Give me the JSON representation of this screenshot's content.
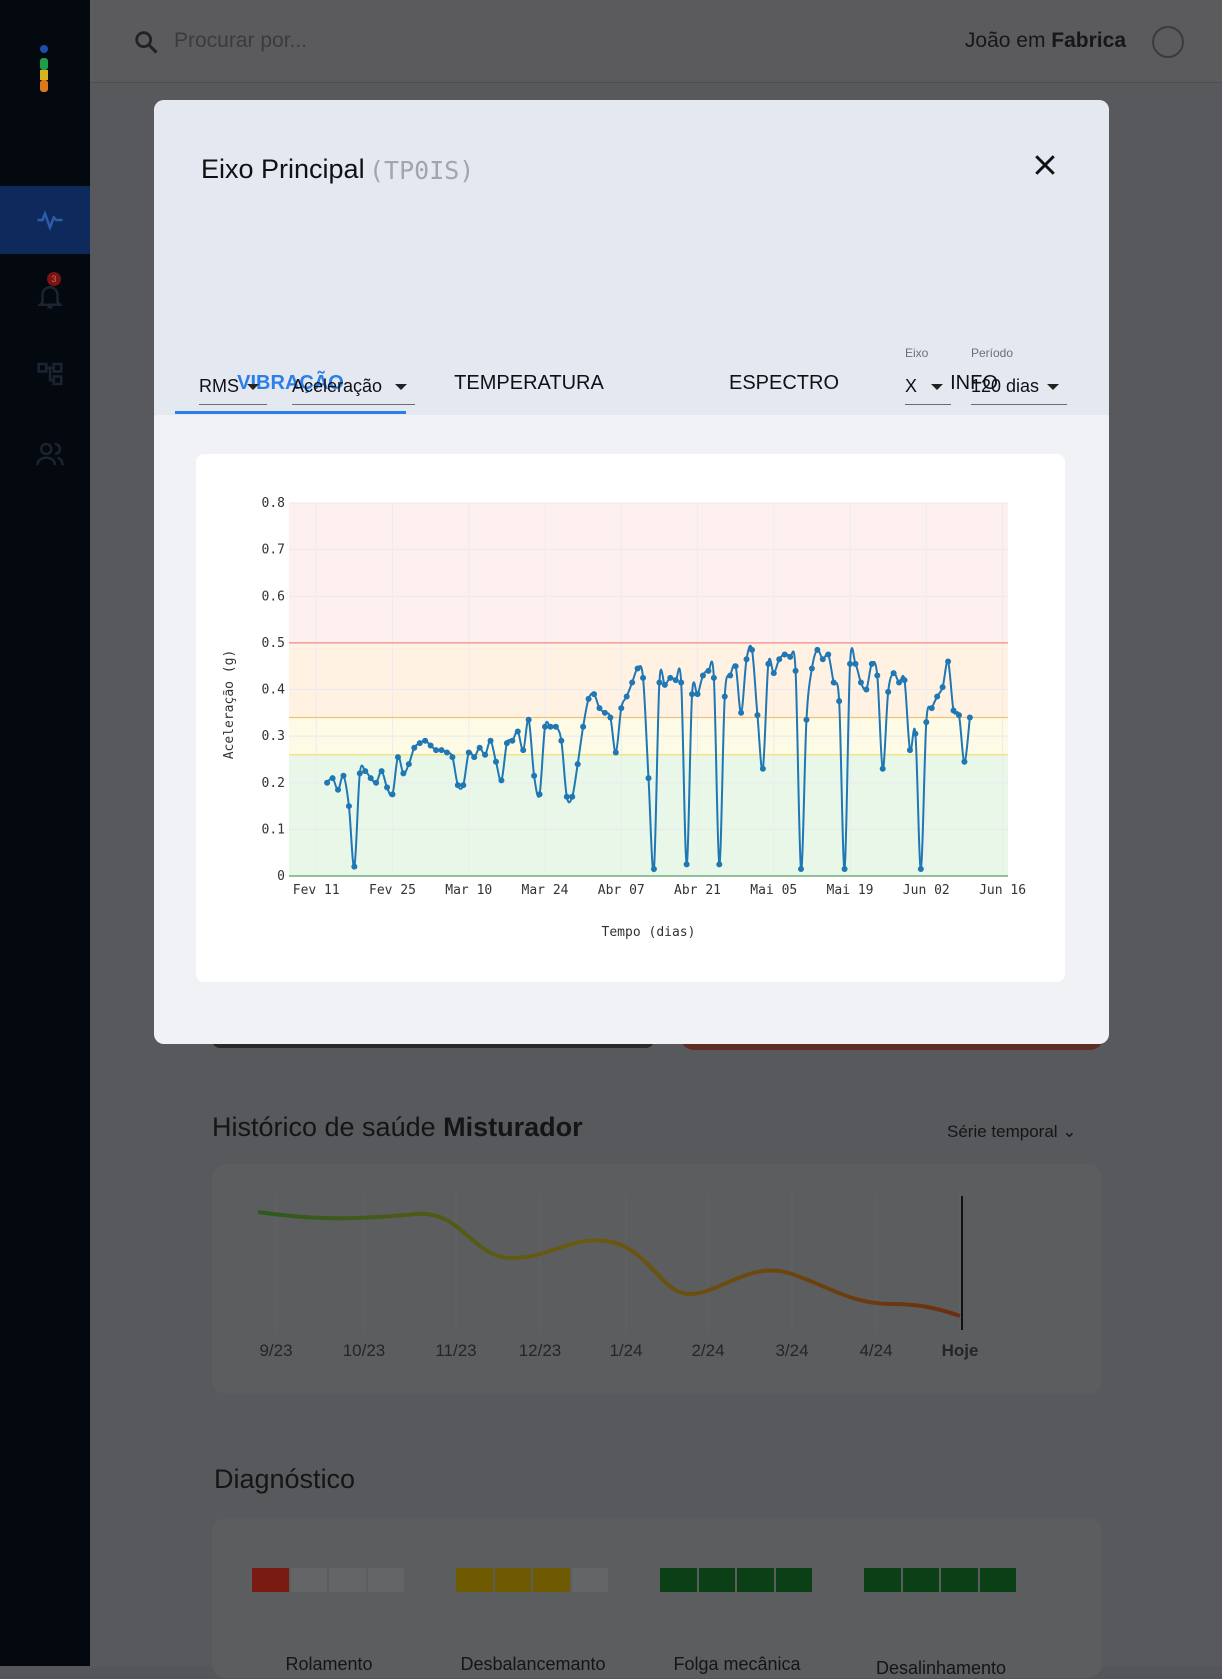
{
  "search": {
    "placeholder": "Procurar por..."
  },
  "user": {
    "name": "João em",
    "org": "Fabrica"
  },
  "sidebar": {
    "items": [
      {
        "icon": "activity-icon",
        "active": true
      },
      {
        "icon": "bell-icon",
        "badge": "3"
      },
      {
        "icon": "hierarchy-icon"
      },
      {
        "icon": "users-icon"
      }
    ]
  },
  "history": {
    "title_prefix": "Histórico de saúde",
    "asset": "Misturador",
    "view_select": "Série temporal",
    "x_labels": [
      "9/23",
      "10/23",
      "11/23",
      "12/23",
      "1/24",
      "2/24",
      "3/24",
      "4/24",
      "Hoje"
    ]
  },
  "diagnostics": {
    "title": "Diagnóstico",
    "items": [
      {
        "label": "Rolamento",
        "level": 1,
        "color": "#7a1b13"
      },
      {
        "label": "Desbalancemanto",
        "level": 3,
        "color": "#6e5a00"
      },
      {
        "label": "Folga mecânica",
        "level": 4,
        "color": "#0b3f16"
      },
      {
        "label": "Desalinhamento",
        "level": 4,
        "color": "#0b3f16"
      }
    ]
  },
  "modal": {
    "title": "Eixo Principal",
    "code": "(TP0IS)",
    "tabs": [
      "VIBRAÇÃO",
      "TEMPERATURA",
      "ESPECTRO",
      "INFO"
    ],
    "active_tab": 0,
    "metric_select": "RMS",
    "quantity_select": "Aceleração",
    "axis": {
      "label": "Eixo",
      "value": "X"
    },
    "period": {
      "label": "Período",
      "value": "120 dias"
    }
  },
  "chart_data": {
    "type": "line",
    "xlabel": "Tempo (dias)",
    "ylabel": "Aceleração (g)",
    "ylim": [
      0,
      0.8
    ],
    "yticks": [
      "0",
      "0.1",
      "0.2",
      "0.3",
      "0.4",
      "0.5",
      "0.6",
      "0.7",
      "0.8"
    ],
    "xlim": [
      "2024-02-06",
      "2024-06-17"
    ],
    "xticks": [
      {
        "date": "2024-02-11",
        "label": "Fev 11"
      },
      {
        "date": "2024-02-25",
        "label": "Fev 25"
      },
      {
        "date": "2024-03-10",
        "label": "Mar 10"
      },
      {
        "date": "2024-03-24",
        "label": "Mar 24"
      },
      {
        "date": "2024-04-07",
        "label": "Abr 07"
      },
      {
        "date": "2024-04-21",
        "label": "Abr 21"
      },
      {
        "date": "2024-05-05",
        "label": "Mai 05"
      },
      {
        "date": "2024-05-19",
        "label": "Mai 19"
      },
      {
        "date": "2024-06-02",
        "label": "Jun 02"
      },
      {
        "date": "2024-06-16",
        "label": "Jun 16"
      }
    ],
    "bands": [
      {
        "from": 0,
        "to": 0.26,
        "color": "#e8f7e8"
      },
      {
        "from": 0.26,
        "to": 0.34,
        "color": "#fdfbe6"
      },
      {
        "from": 0.34,
        "to": 0.5,
        "color": "#fff2e2"
      },
      {
        "from": 0.5,
        "to": 0.8,
        "color": "#fff0f0"
      }
    ],
    "thresholds": [
      {
        "value": 0.26,
        "color": "#f0e07a"
      },
      {
        "value": 0.34,
        "color": "#f2c27a"
      },
      {
        "value": 0.5,
        "color": "#f08a8a"
      }
    ],
    "grid": true,
    "series": [
      {
        "color": "#1f77b4",
        "x": [
          "2024-02-13",
          "2024-02-14",
          "2024-02-15",
          "2024-02-16",
          "2024-02-17",
          "2024-02-18",
          "2024-02-19",
          "2024-02-20",
          "2024-02-21",
          "2024-02-22",
          "2024-02-23",
          "2024-02-24",
          "2024-02-25",
          "2024-02-26",
          "2024-02-27",
          "2024-02-28",
          "2024-02-29",
          "2024-03-01",
          "2024-03-02",
          "2024-03-03",
          "2024-03-04",
          "2024-03-05",
          "2024-03-06",
          "2024-03-07",
          "2024-03-08",
          "2024-03-09",
          "2024-03-10",
          "2024-03-11",
          "2024-03-12",
          "2024-03-13",
          "2024-03-14",
          "2024-03-15",
          "2024-03-16",
          "2024-03-17",
          "2024-03-18",
          "2024-03-19",
          "2024-03-20",
          "2024-03-21",
          "2024-03-22",
          "2024-03-23",
          "2024-03-24",
          "2024-03-25",
          "2024-03-26",
          "2024-03-27",
          "2024-03-28",
          "2024-03-29",
          "2024-03-30",
          "2024-03-31",
          "2024-04-01",
          "2024-04-02",
          "2024-04-03",
          "2024-04-04",
          "2024-04-05",
          "2024-04-06",
          "2024-04-07",
          "2024-04-08",
          "2024-04-09",
          "2024-04-10",
          "2024-04-11",
          "2024-04-12",
          "2024-04-13",
          "2024-04-14",
          "2024-04-15",
          "2024-04-16",
          "2024-04-17",
          "2024-04-18",
          "2024-04-19",
          "2024-04-20",
          "2024-04-21",
          "2024-04-22",
          "2024-04-23",
          "2024-04-24",
          "2024-04-25",
          "2024-04-26",
          "2024-04-27",
          "2024-04-28",
          "2024-04-29",
          "2024-04-30",
          "2024-05-01",
          "2024-05-02",
          "2024-05-03",
          "2024-05-04",
          "2024-05-05",
          "2024-05-06",
          "2024-05-07",
          "2024-05-08",
          "2024-05-09",
          "2024-05-10",
          "2024-05-11",
          "2024-05-12",
          "2024-05-13",
          "2024-05-14",
          "2024-05-15",
          "2024-05-16",
          "2024-05-17",
          "2024-05-18",
          "2024-05-19",
          "2024-05-20",
          "2024-05-21",
          "2024-05-22",
          "2024-05-23",
          "2024-05-24",
          "2024-05-25",
          "2024-05-26",
          "2024-05-27",
          "2024-05-28",
          "2024-05-29",
          "2024-05-30",
          "2024-05-31",
          "2024-06-01",
          "2024-06-02",
          "2024-06-03",
          "2024-06-04",
          "2024-06-05",
          "2024-06-06",
          "2024-06-07",
          "2024-06-08",
          "2024-06-09",
          "2024-06-10"
        ],
        "y": [
          0.2,
          0.21,
          0.185,
          0.215,
          0.15,
          0.02,
          0.22,
          0.225,
          0.21,
          0.2,
          0.225,
          0.19,
          0.175,
          0.255,
          0.22,
          0.24,
          0.275,
          0.285,
          0.29,
          0.28,
          0.27,
          0.27,
          0.265,
          0.255,
          0.195,
          0.195,
          0.265,
          0.255,
          0.275,
          0.26,
          0.29,
          0.245,
          0.205,
          0.285,
          0.29,
          0.31,
          0.27,
          0.335,
          0.215,
          0.175,
          0.32,
          0.32,
          0.32,
          0.29,
          0.17,
          0.17,
          0.24,
          0.32,
          0.38,
          0.39,
          0.36,
          0.35,
          0.34,
          0.265,
          0.36,
          0.385,
          0.415,
          0.445,
          0.425,
          0.21,
          0.015,
          0.415,
          0.41,
          0.425,
          0.42,
          0.415,
          0.025,
          0.39,
          0.39,
          0.43,
          0.44,
          0.425,
          0.025,
          0.385,
          0.43,
          0.45,
          0.35,
          0.465,
          0.485,
          0.345,
          0.23,
          0.455,
          0.435,
          0.465,
          0.475,
          0.47,
          0.44,
          0.015,
          0.335,
          0.445,
          0.485,
          0.465,
          0.475,
          0.415,
          0.375,
          0.015,
          0.455,
          0.455,
          0.415,
          0.4,
          0.455,
          0.43,
          0.23,
          0.395,
          0.435,
          0.415,
          0.42,
          0.27,
          0.305,
          0.015,
          0.33,
          0.36,
          0.385,
          0.405,
          0.46,
          0.355,
          0.345,
          0.245,
          0.34
        ]
      }
    ]
  }
}
